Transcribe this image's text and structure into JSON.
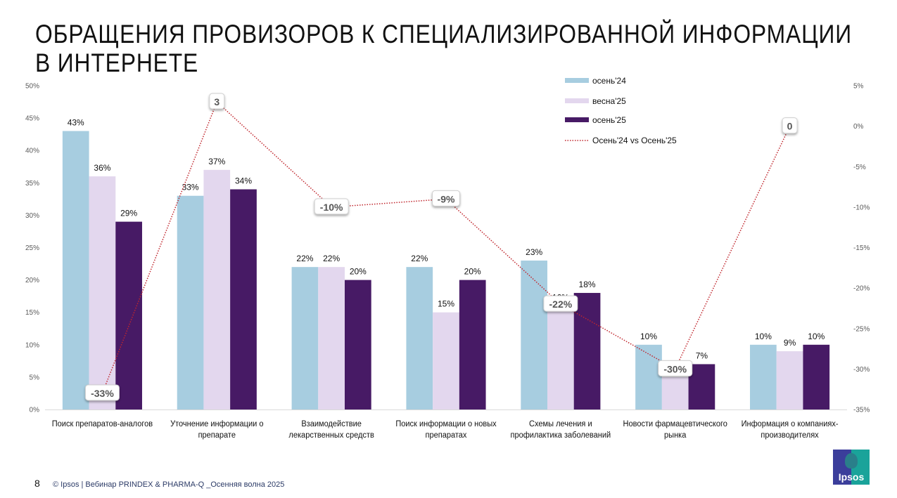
{
  "slide": {
    "title_line1": "ОБРАЩЕНИЯ ПРОВИЗОРОВ К СПЕЦИАЛИЗИРОВАННОЙ ИНФОРМАЦИИ",
    "title_line2": "В ИНТЕРНЕТЕ",
    "page_number": "8",
    "footer": "© Ipsos | Вебинар PRINDEX & PHARMA-Q _Осенняя волна 2025",
    "logo_text": "Ipsos"
  },
  "chart_data": {
    "type": "bar",
    "title": "ОБРАЩЕНИЯ ПРОВИЗОРОВ К СПЕЦИАЛИЗИРОВАННОЙ ИНФОРМАЦИИ В ИНТЕРНЕТЕ",
    "categories": [
      [
        "Поиск препаратов-аналогов"
      ],
      [
        "Уточнение информации о",
        "препарате"
      ],
      [
        "Взаимодействие",
        "лекарственных средств"
      ],
      [
        "Поиск информации о новых",
        "препаратах"
      ],
      [
        "Схемы лечения и",
        "профилактика заболеваний"
      ],
      [
        "Новости фармацевтического",
        "рынка"
      ],
      [
        "Информация о компаниях-",
        "производителях"
      ]
    ],
    "series": [
      {
        "name": "осень'24",
        "color": "#A7CDE0",
        "values": [
          43,
          33,
          22,
          22,
          23,
          10,
          10
        ]
      },
      {
        "name": "весна'25",
        "color": "#E3D7EE",
        "values": [
          36,
          37,
          22,
          15,
          16,
          5,
          9
        ]
      },
      {
        "name": "осень'25",
        "color": "#471A65",
        "values": [
          29,
          34,
          20,
          20,
          18,
          7,
          10
        ]
      }
    ],
    "line_series": {
      "name": "Осень'24 vs Осень'25",
      "color": "#C0262D",
      "style": "dotted",
      "axis": "right",
      "values": [
        -33,
        3,
        -10,
        -9,
        -22,
        -30,
        0
      ],
      "labels": [
        "-33%",
        "3",
        "-10%",
        "-9%",
        "-22%",
        "-30%",
        "0"
      ]
    },
    "ylim": [
      0,
      50
    ],
    "yticks": [
      "0%",
      "5%",
      "10%",
      "15%",
      "20%",
      "25%",
      "30%",
      "35%",
      "40%",
      "45%",
      "50%"
    ],
    "y2lim": [
      -35,
      5
    ],
    "y2ticks": [
      "-35%",
      "-30%",
      "-25%",
      "-20%",
      "-15%",
      "-10%",
      "-5%",
      "0%",
      "5%"
    ],
    "xlabel": "",
    "ylabel": "",
    "grid": false,
    "legend_position": "top-right"
  }
}
